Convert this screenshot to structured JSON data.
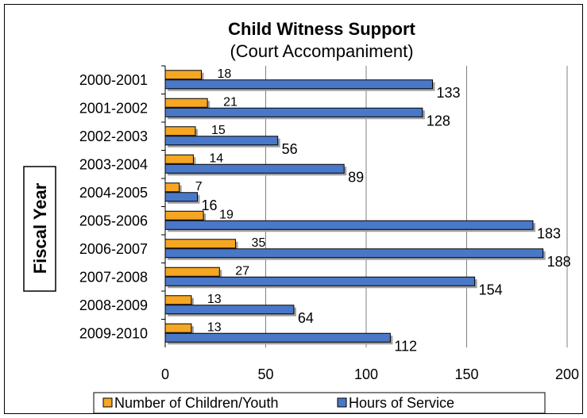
{
  "chart_data": {
    "type": "bar",
    "orientation": "horizontal",
    "title": "Child Witness Support",
    "subtitle": "(Court Accompaniment)",
    "ylabel": "Fiscal Year",
    "xlabel": "",
    "xlim": [
      0,
      200
    ],
    "xticks": [
      "0",
      "50",
      "100",
      "150",
      "200"
    ],
    "grid": true,
    "legend_position": "bottom",
    "categories": [
      "2000-2001",
      "2001-2002",
      "2002-2003",
      "2003-2004",
      "2004-2005",
      "2005-2006",
      "2006-2007",
      "2007-2008",
      "2008-2009",
      "2009-2010"
    ],
    "series": [
      {
        "name": "Number of Children/Youth",
        "color": "#F5A623",
        "values": [
          18,
          21,
          15,
          14,
          7,
          19,
          35,
          27,
          13,
          13
        ]
      },
      {
        "name": "Hours of Service",
        "color": "#4A78C8",
        "values": [
          133,
          128,
          56,
          89,
          16,
          183,
          188,
          154,
          64,
          112
        ]
      }
    ]
  }
}
